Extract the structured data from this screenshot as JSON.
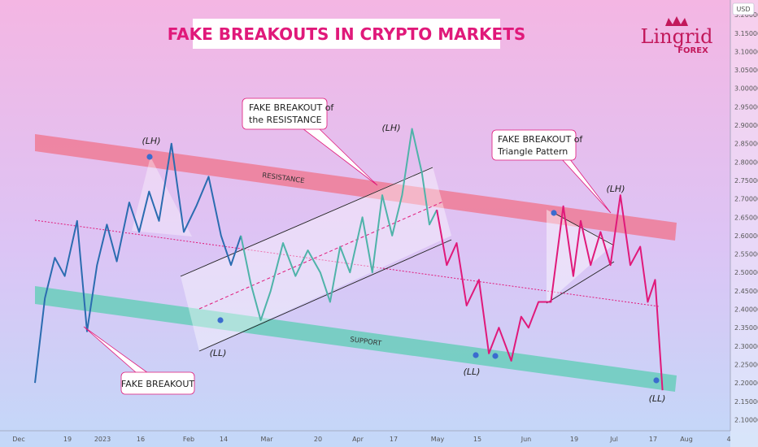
{
  "chart_data": {
    "type": "line",
    "title": "FAKE BREAKOUTS IN CRYPTO MARKETS",
    "y_unit": "USD",
    "ylim": [
      2.07,
      3.24
    ],
    "y_ticks": [
      "3.20000",
      "3.15000",
      "3.10000",
      "3.05000",
      "3.00000",
      "2.95000",
      "2.90000",
      "2.85000",
      "2.80000",
      "2.75000",
      "2.70000",
      "2.65000",
      "2.60000",
      "2.55000",
      "2.50000",
      "2.45000",
      "2.40000",
      "2.35000",
      "2.30000",
      "2.25000",
      "2.20000",
      "2.15000",
      "2.10000"
    ],
    "x_ticks": [
      "Dec",
      "19",
      "2023",
      "16",
      "Feb",
      "14",
      "Mar",
      "20",
      "Apr",
      "17",
      "May",
      "15",
      "Jun",
      "19",
      "Jul",
      "17",
      "Aug"
    ],
    "x_axis_end": "4",
    "series": [
      {
        "color": "#2b6cb0",
        "points": [
          [
            0,
            2.2
          ],
          [
            0.4,
            2.43
          ],
          [
            0.8,
            2.54
          ],
          [
            1.2,
            2.49
          ],
          [
            1.7,
            2.64
          ],
          [
            2.1,
            2.34
          ],
          [
            2.5,
            2.52
          ],
          [
            2.9,
            2.63
          ],
          [
            3.3,
            2.53
          ],
          [
            3.8,
            2.69
          ],
          [
            4.2,
            2.61
          ],
          [
            4.6,
            2.72
          ],
          [
            5.0,
            2.64
          ],
          [
            5.5,
            2.85
          ],
          [
            6.0,
            2.61
          ],
          [
            6.5,
            2.68
          ],
          [
            7.0,
            2.76
          ],
          [
            7.5,
            2.6
          ],
          [
            7.9,
            2.52
          ],
          [
            8.3,
            2.6
          ]
        ]
      },
      {
        "color": "#4fb3a9",
        "points": [
          [
            8.3,
            2.6
          ],
          [
            8.7,
            2.47
          ],
          [
            9.1,
            2.37
          ],
          [
            9.5,
            2.45
          ],
          [
            10.0,
            2.58
          ],
          [
            10.5,
            2.49
          ],
          [
            11.0,
            2.56
          ],
          [
            11.5,
            2.5
          ],
          [
            11.9,
            2.42
          ],
          [
            12.3,
            2.57
          ],
          [
            12.7,
            2.5
          ],
          [
            13.2,
            2.65
          ],
          [
            13.6,
            2.5
          ],
          [
            14.0,
            2.71
          ],
          [
            14.4,
            2.6
          ],
          [
            14.8,
            2.71
          ],
          [
            15.2,
            2.89
          ],
          [
            15.6,
            2.77
          ],
          [
            15.9,
            2.63
          ],
          [
            16.2,
            2.67
          ]
        ]
      },
      {
        "color": "#e0197a",
        "points": [
          [
            16.2,
            2.67
          ],
          [
            16.6,
            2.52
          ],
          [
            17.0,
            2.58
          ],
          [
            17.4,
            2.41
          ],
          [
            17.9,
            2.48
          ],
          [
            18.3,
            2.28
          ],
          [
            18.7,
            2.35
          ],
          [
            19.2,
            2.26
          ],
          [
            19.6,
            2.38
          ],
          [
            19.9,
            2.35
          ],
          [
            20.3,
            2.42
          ],
          [
            20.8,
            2.42
          ],
          [
            21.3,
            2.68
          ],
          [
            21.7,
            2.49
          ],
          [
            22.0,
            2.64
          ],
          [
            22.4,
            2.52
          ],
          [
            22.8,
            2.61
          ],
          [
            23.2,
            2.52
          ],
          [
            23.6,
            2.71
          ],
          [
            24.0,
            2.52
          ],
          [
            24.4,
            2.57
          ],
          [
            24.7,
            2.42
          ],
          [
            25.0,
            2.48
          ],
          [
            25.3,
            2.18
          ]
        ]
      }
    ],
    "zones": [
      {
        "name": "RESISTANCE",
        "color": "#ee7b95"
      },
      {
        "name": "SUPPORT",
        "color": "#6fcdbf"
      }
    ],
    "annotations": {
      "breakout_resistance": [
        "FAKE BREAKOUT of",
        "the RESISTANCE"
      ],
      "breakout_triangle": [
        "FAKE BREAKOUT of",
        "Triangle Pattern"
      ],
      "breakout_bottom": "FAKE BREAKOUT",
      "lh": "(LH)",
      "ll": "(LL)"
    }
  },
  "logo": {
    "name": "Lingrid",
    "sub": "FOREX"
  }
}
